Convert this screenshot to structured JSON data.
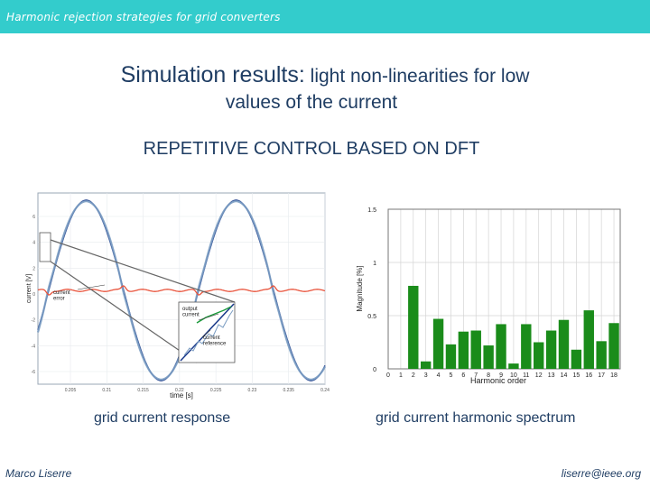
{
  "header": {
    "title": "Harmonic rejection strategies for grid converters"
  },
  "slide": {
    "title_big": "Simulation results:",
    "title_small": " light non-linearities for low",
    "title_line2": "values of the current",
    "subtitle": "REPETITIVE CONTROL BASED ON DFT"
  },
  "left_figure": {
    "caption": "grid current response",
    "xlabel": "time [s]",
    "ylabel": "current [V]",
    "legend_error": "current\nerror",
    "legend_output": "output\ncurrent",
    "legend_reference": "current\nreference",
    "x_ticks": [
      "0.205",
      "0.21",
      "0.215",
      "0.22",
      "0.225",
      "0.23",
      "0.235",
      "0.24"
    ],
    "y_ticks": [
      "6",
      "4",
      "2",
      "0",
      "-2",
      "-4",
      "-6"
    ],
    "colors": {
      "output": "#7a9cc2",
      "reference": "#1a3a8a",
      "error": "#e8523a",
      "zoom": "#1a9a3a"
    }
  },
  "chart_data": {
    "type": "bar",
    "title": "",
    "xlabel": "Harmonic order",
    "ylabel": "Magnitude [%]",
    "categories": [
      "0",
      "1",
      "2",
      "3",
      "4",
      "5",
      "6",
      "7",
      "8",
      "9",
      "10",
      "11",
      "12",
      "13",
      "14",
      "15",
      "16",
      "17",
      "18"
    ],
    "values": [
      0,
      0,
      0.78,
      0.07,
      0.47,
      0.23,
      0.35,
      0.36,
      0.22,
      0.42,
      0.05,
      0.42,
      0.25,
      0.36,
      0.46,
      0.18,
      0.55,
      0.26,
      0.43
    ],
    "y_ticks": [
      "0",
      "0.5",
      "1",
      "1.5"
    ],
    "ylim": [
      0,
      1.5
    ],
    "grid": true,
    "color": "#1a8c1a",
    "caption": "grid current harmonic spectrum"
  },
  "footer": {
    "author": "Marco Liserre",
    "email": "liserre@ieee.org"
  }
}
